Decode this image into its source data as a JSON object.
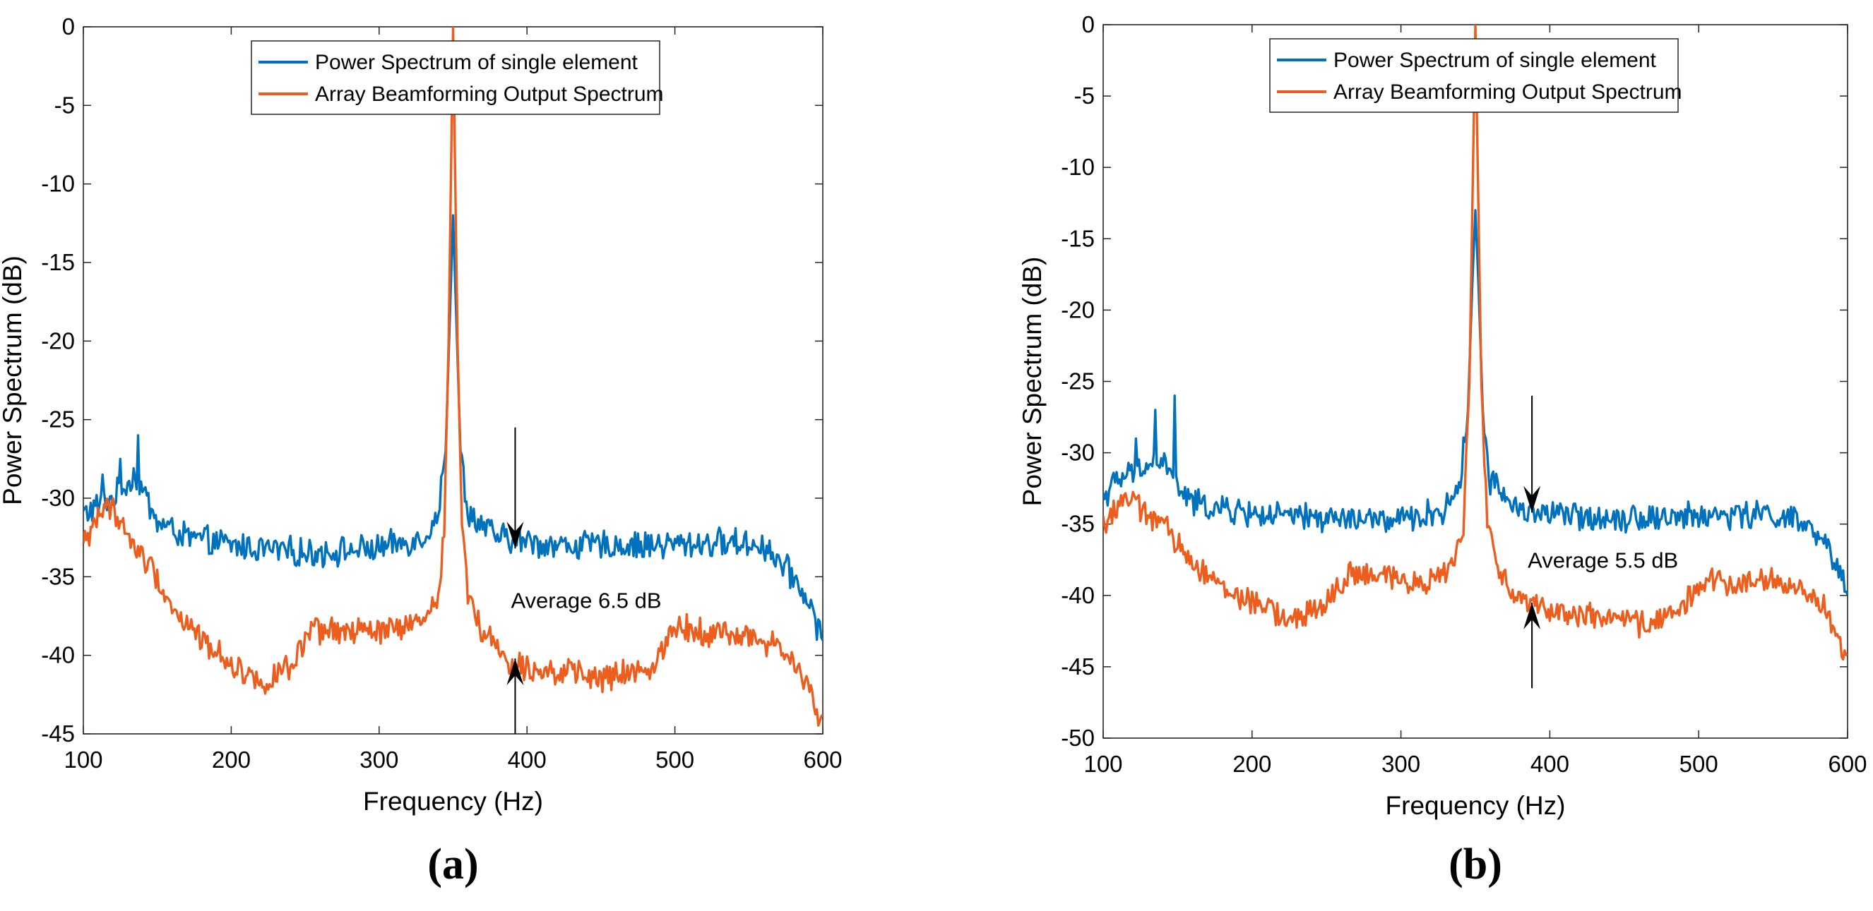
{
  "chart_data": [
    {
      "type": "line",
      "panel_label": "(a)",
      "xlabel": "Frequency (Hz)",
      "ylabel": "Power Spectrum (dB)",
      "xlim": [
        100,
        600
      ],
      "ylim": [
        -45,
        0
      ],
      "xticks": [
        100,
        200,
        300,
        400,
        500,
        600
      ],
      "yticks": [
        0,
        -5,
        -10,
        -15,
        -20,
        -25,
        -30,
        -35,
        -40,
        -45
      ],
      "legend_position": "top-center",
      "series": [
        {
          "name": "Power Spectrum of single element",
          "color": "#0072BD",
          "baseline": [
            [
              100,
              -31
            ],
            [
              120,
              -30
            ],
            [
              135,
              -28.5
            ],
            [
              150,
              -31.5
            ],
            [
              170,
              -32.5
            ],
            [
              200,
              -33
            ],
            [
              250,
              -33.5
            ],
            [
              300,
              -33.2
            ],
            [
              330,
              -32.5
            ],
            [
              340,
              -31
            ],
            [
              345,
              -27
            ],
            [
              348,
              -18
            ],
            [
              350,
              -12
            ],
            [
              352,
              -18
            ],
            [
              355,
              -27
            ],
            [
              360,
              -31
            ],
            [
              380,
              -32.5
            ],
            [
              420,
              -33
            ],
            [
              480,
              -33
            ],
            [
              540,
              -32.8
            ],
            [
              560,
              -33
            ],
            [
              570,
              -34
            ],
            [
              580,
              -35
            ],
            [
              590,
              -36.5
            ],
            [
              600,
              -39
            ]
          ],
          "spikes": [
            [
              113,
              -28.5
            ],
            [
              125,
              -27.5
            ],
            [
              137,
              -26
            ]
          ],
          "noise": 0.8
        },
        {
          "name": "Array Beamforming Output Spectrum",
          "color": "#ED5E1E",
          "baseline": [
            [
              100,
              -33
            ],
            [
              110,
              -31
            ],
            [
              120,
              -30.5
            ],
            [
              130,
              -32.5
            ],
            [
              150,
              -35
            ],
            [
              160,
              -37
            ],
            [
              180,
              -39
            ],
            [
              200,
              -40.5
            ],
            [
              220,
              -41.8
            ],
            [
              240,
              -40.8
            ],
            [
              255,
              -38.5
            ],
            [
              270,
              -38.5
            ],
            [
              300,
              -38.5
            ],
            [
              330,
              -38
            ],
            [
              340,
              -36
            ],
            [
              344,
              -32
            ],
            [
              347,
              -20
            ],
            [
              350,
              0
            ],
            [
              353,
              -20
            ],
            [
              356,
              -32
            ],
            [
              360,
              -36
            ],
            [
              370,
              -38.5
            ],
            [
              390,
              -40.5
            ],
            [
              420,
              -41
            ],
            [
              450,
              -41.5
            ],
            [
              480,
              -41
            ],
            [
              490,
              -40
            ],
            [
              500,
              -38
            ],
            [
              520,
              -38.5
            ],
            [
              550,
              -38.8
            ],
            [
              570,
              -39.5
            ],
            [
              580,
              -40.5
            ],
            [
              590,
              -42
            ],
            [
              600,
              -44.5
            ]
          ],
          "noise": 0.75
        }
      ],
      "annotations": [
        {
          "text": "Average 6.5 dB",
          "x": 392,
          "y": -36.5
        },
        {
          "arrow": "down",
          "x": 392,
          "y_from": -25.5,
          "y_to": -33.2
        },
        {
          "arrow": "up",
          "x": 392,
          "y_from": -45,
          "y_to": -40.2
        }
      ]
    },
    {
      "type": "line",
      "panel_label": "(b)",
      "xlabel": "Frequency (Hz)",
      "ylabel": "Power Spectrum (dB)",
      "xlim": [
        100,
        600
      ],
      "ylim": [
        -50,
        0
      ],
      "xticks": [
        100,
        200,
        300,
        400,
        500,
        600
      ],
      "yticks": [
        0,
        -5,
        -10,
        -15,
        -20,
        -25,
        -30,
        -35,
        -40,
        -45,
        -50
      ],
      "legend_position": "top-center",
      "series": [
        {
          "name": "Power Spectrum of single element",
          "color": "#0072BD",
          "baseline": [
            [
              100,
              -33
            ],
            [
              110,
              -32
            ],
            [
              125,
              -31
            ],
            [
              140,
              -30.5
            ],
            [
              150,
              -32.5
            ],
            [
              160,
              -33.5
            ],
            [
              180,
              -34
            ],
            [
              220,
              -34.5
            ],
            [
              300,
              -34.8
            ],
            [
              330,
              -34
            ],
            [
              340,
              -32
            ],
            [
              345,
              -27
            ],
            [
              348,
              -18
            ],
            [
              350,
              -13
            ],
            [
              352,
              -18
            ],
            [
              355,
              -27
            ],
            [
              360,
              -32
            ],
            [
              380,
              -34
            ],
            [
              420,
              -34.5
            ],
            [
              480,
              -34.5
            ],
            [
              550,
              -34.3
            ],
            [
              570,
              -35
            ],
            [
              585,
              -36.5
            ],
            [
              600,
              -39.5
            ]
          ],
          "spikes": [
            [
              122,
              -29
            ],
            [
              135,
              -27
            ],
            [
              148,
              -26
            ]
          ],
          "noise": 0.85
        },
        {
          "name": "Array Beamforming Output Spectrum",
          "color": "#ED5E1E",
          "baseline": [
            [
              100,
              -35
            ],
            [
              115,
              -33
            ],
            [
              125,
              -34
            ],
            [
              140,
              -35
            ],
            [
              150,
              -36.5
            ],
            [
              165,
              -38
            ],
            [
              180,
              -39.5
            ],
            [
              200,
              -40.5
            ],
            [
              230,
              -41.8
            ],
            [
              250,
              -40.5
            ],
            [
              265,
              -38.5
            ],
            [
              290,
              -38.8
            ],
            [
              320,
              -39
            ],
            [
              335,
              -38
            ],
            [
              342,
              -35
            ],
            [
              346,
              -25
            ],
            [
              350,
              0
            ],
            [
              354,
              -25
            ],
            [
              358,
              -35
            ],
            [
              365,
              -38.5
            ],
            [
              380,
              -40
            ],
            [
              400,
              -41
            ],
            [
              430,
              -41.5
            ],
            [
              460,
              -42
            ],
            [
              480,
              -41.5
            ],
            [
              495,
              -40
            ],
            [
              510,
              -39
            ],
            [
              550,
              -39
            ],
            [
              570,
              -39.5
            ],
            [
              585,
              -41
            ],
            [
              600,
              -44.5
            ]
          ],
          "noise": 0.8
        }
      ],
      "annotations": [
        {
          "text": "Average 5.5 dB",
          "x": 388,
          "y": -37.5
        },
        {
          "arrow": "down",
          "x": 388,
          "y_from": -26,
          "y_to": -34.2
        },
        {
          "arrow": "up",
          "x": 388,
          "y_from": -46.5,
          "y_to": -40.5
        }
      ]
    }
  ]
}
